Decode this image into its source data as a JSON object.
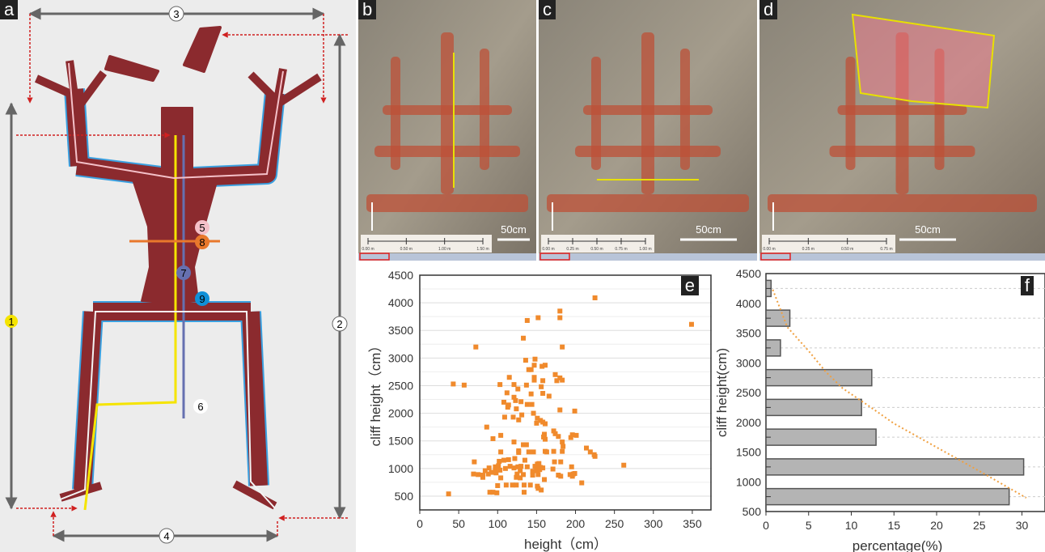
{
  "panels": {
    "a": {
      "label": "a",
      "markers": [
        "1",
        "2",
        "3",
        "4",
        "5",
        "6",
        "7",
        "8",
        "9"
      ]
    },
    "b": {
      "label": "b",
      "scale_text": "50cm",
      "ruler_ticks": [
        "0.00 m",
        "0.50 m",
        "1.00 m",
        "1.50 m"
      ]
    },
    "c": {
      "label": "c",
      "scale_text": "50cm",
      "ruler_ticks": [
        "0.00 m",
        "0.25 m",
        "0.50 m",
        "0.75 m",
        "1.00 m"
      ]
    },
    "d": {
      "label": "d",
      "scale_text": "50cm",
      "ruler_ticks": [
        "0.00 m",
        "0.25 m",
        "0.50 m",
        "0.75 m"
      ]
    },
    "e": {
      "label": "e"
    },
    "f": {
      "label": "f"
    }
  },
  "colors": {
    "figure": "#8b2a2e",
    "outline": "#3aa0e0",
    "scatter": "#f08a2c",
    "bar": "#b4b4b4",
    "trend": "#f0a040",
    "measure_yellow": "#f5e400",
    "measure_purple": "#6670b0",
    "measure_orange": "#e8782c"
  },
  "chart_data": [
    {
      "panel": "e",
      "type": "scatter",
      "xlabel": "height（cm）",
      "ylabel": "cliff height（cm）",
      "xlim": [
        0,
        375
      ],
      "ylim": [
        250,
        4500
      ],
      "xticks": [
        0,
        50,
        100,
        150,
        200,
        250,
        300,
        350
      ],
      "yticks": [
        500,
        1000,
        1500,
        2000,
        2500,
        3000,
        3500,
        4000,
        4500
      ],
      "grid": true,
      "points": [
        [
          225,
          4090
        ],
        [
          180,
          3850
        ],
        [
          180,
          3730
        ],
        [
          152,
          3730
        ],
        [
          138,
          3680
        ],
        [
          349,
          3610
        ],
        [
          133,
          3360
        ],
        [
          72,
          3200
        ],
        [
          183,
          3200
        ],
        [
          136,
          2960
        ],
        [
          148,
          2980
        ],
        [
          147,
          2870
        ],
        [
          157,
          2850
        ],
        [
          161,
          2870
        ],
        [
          140,
          2790
        ],
        [
          143,
          2790
        ],
        [
          174,
          2700
        ],
        [
          180,
          2640
        ],
        [
          115,
          2650
        ],
        [
          147,
          2650
        ],
        [
          147,
          2600
        ],
        [
          158,
          2590
        ],
        [
          176,
          2590
        ],
        [
          183,
          2600
        ],
        [
          43,
          2530
        ],
        [
          57,
          2510
        ],
        [
          103,
          2520
        ],
        [
          121,
          2520
        ],
        [
          137,
          2510
        ],
        [
          126,
          2440
        ],
        [
          156,
          2480
        ],
        [
          143,
          2350
        ],
        [
          112,
          2370
        ],
        [
          158,
          2360
        ],
        [
          166,
          2310
        ],
        [
          121,
          2290
        ],
        [
          108,
          2200
        ],
        [
          123,
          2230
        ],
        [
          130,
          2210
        ],
        [
          138,
          2160
        ],
        [
          144,
          2160
        ],
        [
          114,
          2150
        ],
        [
          113,
          2110
        ],
        [
          124,
          2080
        ],
        [
          180,
          2060
        ],
        [
          199,
          2040
        ],
        [
          146,
          2000
        ],
        [
          131,
          1970
        ],
        [
          109,
          1930
        ],
        [
          120,
          1930
        ],
        [
          151,
          1910
        ],
        [
          155,
          1870
        ],
        [
          127,
          1880
        ],
        [
          158,
          1840
        ],
        [
          161,
          1810
        ],
        [
          150,
          1820
        ],
        [
          86,
          1750
        ],
        [
          172,
          1680
        ],
        [
          174,
          1630
        ],
        [
          160,
          1620
        ],
        [
          159,
          1570
        ],
        [
          178,
          1580
        ],
        [
          196,
          1610
        ],
        [
          201,
          1600
        ],
        [
          194,
          1560
        ],
        [
          161,
          1530
        ],
        [
          104,
          1600
        ],
        [
          94,
          1540
        ],
        [
          121,
          1480
        ],
        [
          183,
          1480
        ],
        [
          133,
          1430
        ],
        [
          137,
          1430
        ],
        [
          184,
          1400
        ],
        [
          214,
          1370
        ],
        [
          127,
          1320
        ],
        [
          219,
          1300
        ],
        [
          224,
          1250
        ],
        [
          225,
          1220
        ],
        [
          104,
          1300
        ],
        [
          140,
          1300
        ],
        [
          146,
          1300
        ],
        [
          161,
          1310
        ],
        [
          163,
          1300
        ],
        [
          172,
          1310
        ],
        [
          183,
          1310
        ],
        [
          127,
          1290
        ],
        [
          70,
          1120
        ],
        [
          102,
          1130
        ],
        [
          108,
          1150
        ],
        [
          114,
          1160
        ],
        [
          122,
          1180
        ],
        [
          135,
          1150
        ],
        [
          151,
          1080
        ],
        [
          153,
          1090
        ],
        [
          173,
          1120
        ],
        [
          181,
          1120
        ],
        [
          262,
          1060
        ],
        [
          89,
          1010
        ],
        [
          97,
          1030
        ],
        [
          101,
          1050
        ],
        [
          110,
          1000
        ],
        [
          116,
          1040
        ],
        [
          121,
          1010
        ],
        [
          126,
          1030
        ],
        [
          130,
          1040
        ],
        [
          138,
          1030
        ],
        [
          148,
          1040
        ],
        [
          150,
          1000
        ],
        [
          155,
          1020
        ],
        [
          158,
          1010
        ],
        [
          171,
          990
        ],
        [
          195,
          1030
        ],
        [
          84,
          960
        ],
        [
          92,
          930
        ],
        [
          97,
          950
        ],
        [
          103,
          970
        ],
        [
          129,
          960
        ],
        [
          145,
          950
        ],
        [
          151,
          960
        ],
        [
          154,
          980
        ],
        [
          69,
          900
        ],
        [
          75,
          890
        ],
        [
          81,
          880
        ],
        [
          88,
          900
        ],
        [
          98,
          920
        ],
        [
          125,
          900
        ],
        [
          133,
          890
        ],
        [
          145,
          880
        ],
        [
          152,
          890
        ],
        [
          178,
          880
        ],
        [
          181,
          860
        ],
        [
          193,
          890
        ],
        [
          197,
          900
        ],
        [
          199,
          910
        ],
        [
          81,
          840
        ],
        [
          104,
          830
        ],
        [
          124,
          840
        ],
        [
          129,
          830
        ],
        [
          160,
          800
        ],
        [
          196,
          860
        ],
        [
          100,
          690
        ],
        [
          111,
          700
        ],
        [
          119,
          700
        ],
        [
          124,
          700
        ],
        [
          134,
          700
        ],
        [
          142,
          700
        ],
        [
          151,
          680
        ],
        [
          208,
          740
        ],
        [
          152,
          640
        ],
        [
          156,
          610
        ],
        [
          90,
          570
        ],
        [
          94,
          570
        ],
        [
          99,
          560
        ],
        [
          134,
          570
        ],
        [
          37,
          540
        ]
      ]
    },
    {
      "panel": "f",
      "type": "bar",
      "orientation": "horizontal",
      "xlabel": "percentage(%)",
      "ylabel": "cliff height(cm)",
      "xlim": [
        0,
        32.7
      ],
      "ylim": [
        500,
        4500
      ],
      "xticks": [
        0,
        5,
        10,
        15,
        20,
        25,
        30
      ],
      "yticks": [
        500,
        1000,
        1500,
        2000,
        2500,
        3000,
        3500,
        4000,
        4500
      ],
      "categories": [
        750,
        1250,
        1750,
        2250,
        2750,
        3250,
        3750,
        4250
      ],
      "values": [
        28.5,
        30.2,
        12.9,
        11.2,
        12.4,
        1.7,
        2.8,
        0.6
      ],
      "trendline": [
        [
          0.8,
          4230
        ],
        [
          2.5,
          3600
        ],
        [
          5,
          3200
        ],
        [
          7,
          2850
        ],
        [
          9,
          2570
        ],
        [
          12,
          2280
        ],
        [
          15,
          1980
        ],
        [
          18,
          1740
        ],
        [
          22,
          1420
        ],
        [
          26,
          1100
        ],
        [
          30.5,
          730
        ]
      ]
    }
  ]
}
